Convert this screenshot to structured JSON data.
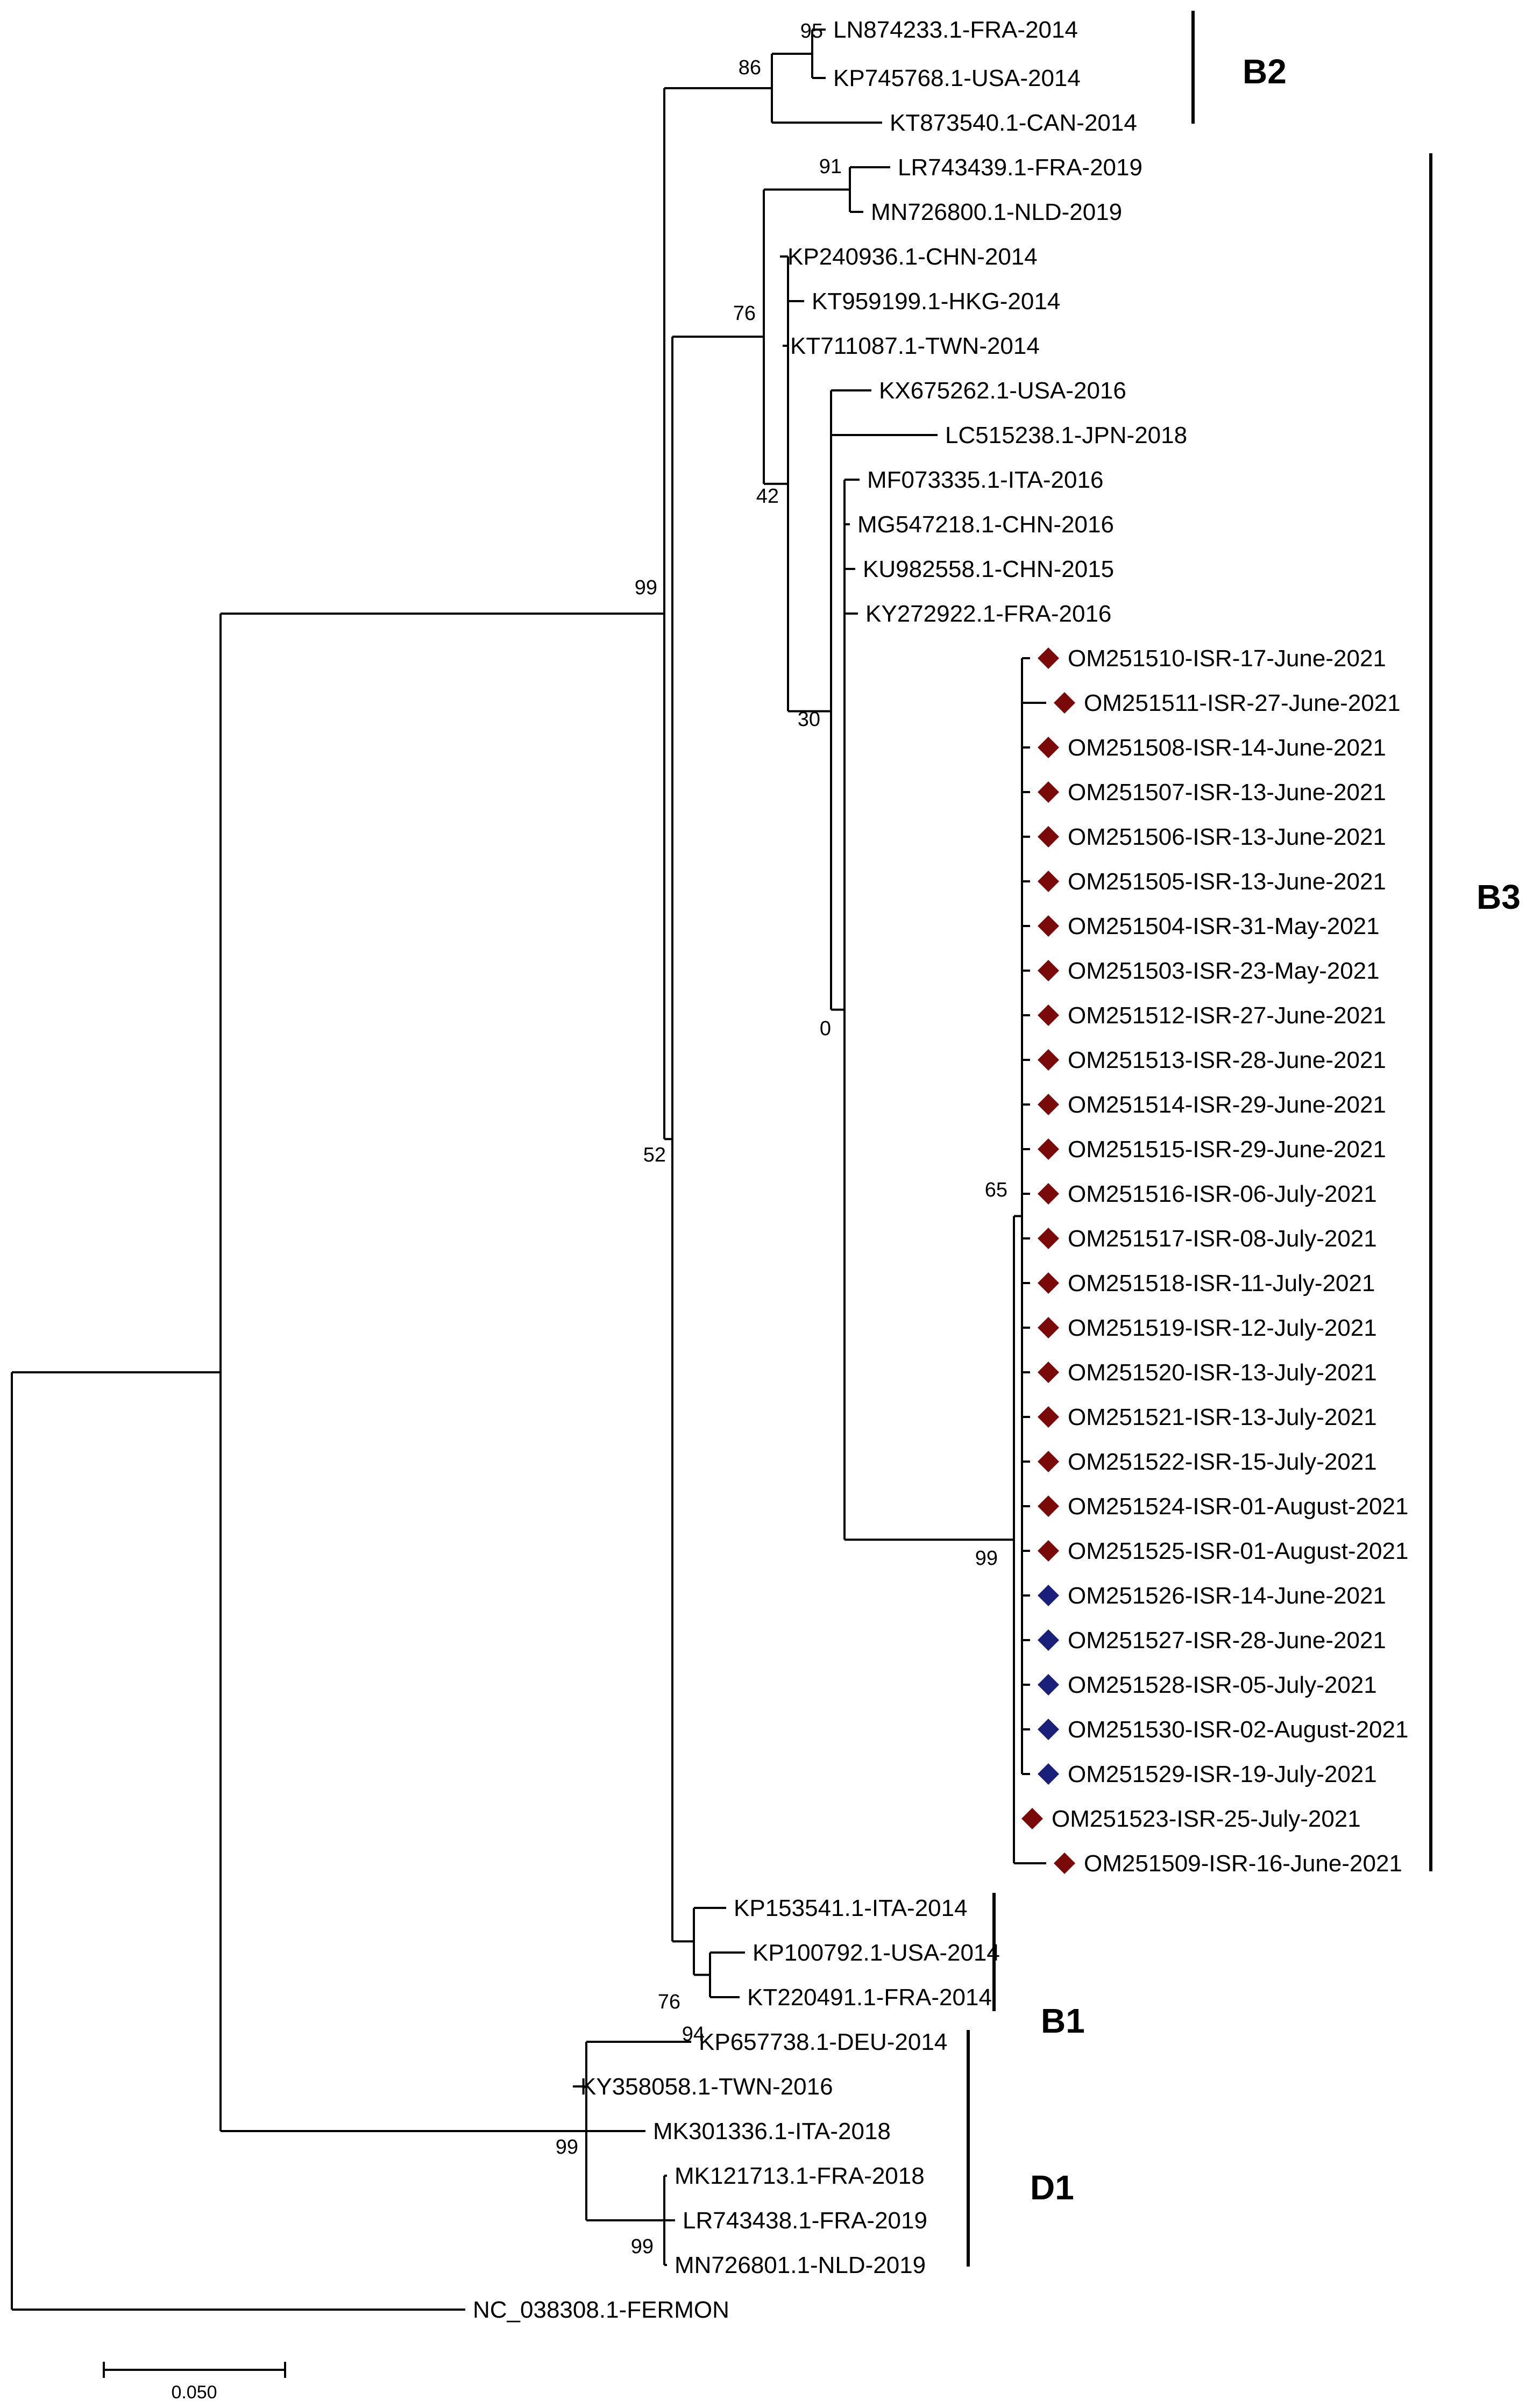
{
  "diagram": {
    "type": "phylogenetic-tree",
    "marker_colors": {
      "red": "#7a0a0a",
      "blue": "#1a1f7a"
    },
    "leaves": [
      {
        "id": "L1",
        "label": "LN874233.1-FRA-2014"
      },
      {
        "id": "L2",
        "label": "KP745768.1-USA-2014"
      },
      {
        "id": "L3",
        "label": "KT873540.1-CAN-2014"
      },
      {
        "id": "L4",
        "label": "LR743439.1-FRA-2019"
      },
      {
        "id": "L5",
        "label": "MN726800.1-NLD-2019"
      },
      {
        "id": "L6",
        "label": "KP240936.1-CHN-2014"
      },
      {
        "id": "L7",
        "label": "KT959199.1-HKG-2014"
      },
      {
        "id": "L8",
        "label": "KT711087.1-TWN-2014"
      },
      {
        "id": "L9",
        "label": "KX675262.1-USA-2016"
      },
      {
        "id": "L10",
        "label": "LC515238.1-JPN-2018"
      },
      {
        "id": "L11",
        "label": "MF073335.1-ITA-2016"
      },
      {
        "id": "L12",
        "label": "MG547218.1-CHN-2016"
      },
      {
        "id": "L13",
        "label": "KU982558.1-CHN-2015"
      },
      {
        "id": "L14",
        "label": "KY272922.1-FRA-2016"
      },
      {
        "id": "L15",
        "label": "OM251510-ISR-17-June-2021",
        "marker": "red"
      },
      {
        "id": "L16",
        "label": "OM251511-ISR-27-June-2021",
        "marker": "red"
      },
      {
        "id": "L17",
        "label": "OM251508-ISR-14-June-2021",
        "marker": "red"
      },
      {
        "id": "L18",
        "label": "OM251507-ISR-13-June-2021",
        "marker": "red"
      },
      {
        "id": "L19",
        "label": "OM251506-ISR-13-June-2021",
        "marker": "red"
      },
      {
        "id": "L20",
        "label": "OM251505-ISR-13-June-2021",
        "marker": "red"
      },
      {
        "id": "L21",
        "label": "OM251504-ISR-31-May-2021",
        "marker": "red"
      },
      {
        "id": "L22",
        "label": "OM251503-ISR-23-May-2021",
        "marker": "red"
      },
      {
        "id": "L23",
        "label": "OM251512-ISR-27-June-2021",
        "marker": "red"
      },
      {
        "id": "L24",
        "label": "OM251513-ISR-28-June-2021",
        "marker": "red"
      },
      {
        "id": "L25",
        "label": "OM251514-ISR-29-June-2021",
        "marker": "red"
      },
      {
        "id": "L26",
        "label": "OM251515-ISR-29-June-2021",
        "marker": "red"
      },
      {
        "id": "L27",
        "label": "OM251516-ISR-06-July-2021",
        "marker": "red"
      },
      {
        "id": "L28",
        "label": "OM251517-ISR-08-July-2021",
        "marker": "red"
      },
      {
        "id": "L29",
        "label": "OM251518-ISR-11-July-2021",
        "marker": "red"
      },
      {
        "id": "L30",
        "label": "OM251519-ISR-12-July-2021",
        "marker": "red"
      },
      {
        "id": "L31",
        "label": "OM251520-ISR-13-July-2021",
        "marker": "red"
      },
      {
        "id": "L32",
        "label": "OM251521-ISR-13-July-2021",
        "marker": "red"
      },
      {
        "id": "L33",
        "label": "OM251522-ISR-15-July-2021",
        "marker": "red"
      },
      {
        "id": "L34",
        "label": "OM251524-ISR-01-August-2021",
        "marker": "red"
      },
      {
        "id": "L35",
        "label": "OM251525-ISR-01-August-2021",
        "marker": "red"
      },
      {
        "id": "L36",
        "label": "OM251526-ISR-14-June-2021",
        "marker": "blue"
      },
      {
        "id": "L37",
        "label": "OM251527-ISR-28-June-2021",
        "marker": "blue"
      },
      {
        "id": "L38",
        "label": "OM251528-ISR-05-July-2021",
        "marker": "blue"
      },
      {
        "id": "L39",
        "label": "OM251530-ISR-02-August-2021",
        "marker": "blue"
      },
      {
        "id": "L40",
        "label": "OM251529-ISR-19-July-2021",
        "marker": "blue"
      },
      {
        "id": "L41",
        "label": "OM251523-ISR-25-July-2021",
        "marker": "red"
      },
      {
        "id": "L42",
        "label": "OM251509-ISR-16-June-2021",
        "marker": "red"
      },
      {
        "id": "L43",
        "label": "KP153541.1-ITA-2014"
      },
      {
        "id": "L44",
        "label": "KP100792.1-USA-2014"
      },
      {
        "id": "L45",
        "label": "KT220491.1-FRA-2014"
      },
      {
        "id": "L46",
        "label": "KP657738.1-DEU-2014"
      },
      {
        "id": "L47",
        "label": "KY358058.1-TWN-2016"
      },
      {
        "id": "L48",
        "label": "MK301336.1-ITA-2018"
      },
      {
        "id": "L49",
        "label": "MK121713.1-FRA-2018"
      },
      {
        "id": "L50",
        "label": "LR743438.1-FRA-2019"
      },
      {
        "id": "L51",
        "label": "MN726801.1-NLD-2019"
      },
      {
        "id": "L52",
        "label": "NC_038308.1-FERMON"
      }
    ],
    "support_values": [
      {
        "node": "b2_inner",
        "value": "95"
      },
      {
        "node": "b2_root",
        "value": "86"
      },
      {
        "node": "b3_nld_fra",
        "value": "91"
      },
      {
        "node": "b3_root",
        "value": "76"
      },
      {
        "node": "b3_mid",
        "value": "42"
      },
      {
        "node": "b3_inner",
        "value": "30"
      },
      {
        "node": "b3_zero",
        "value": "0"
      },
      {
        "node": "b3_isr_inner",
        "value": "65"
      },
      {
        "node": "b3_isr",
        "value": "99"
      },
      {
        "node": "b_all",
        "value": "99"
      },
      {
        "node": "b_mid",
        "value": "52"
      },
      {
        "node": "b1_root",
        "value": "76"
      },
      {
        "node": "b1_inner",
        "value": "94"
      },
      {
        "node": "d1_root",
        "value": "99"
      },
      {
        "node": "d1_inner",
        "value": "99"
      }
    ],
    "clades": [
      {
        "id": "B2",
        "label": "B2"
      },
      {
        "id": "B3",
        "label": "B3"
      },
      {
        "id": "B1",
        "label": "B1"
      },
      {
        "id": "D1",
        "label": "D1"
      }
    ],
    "scale": {
      "value": 0.05,
      "label": "0.050"
    }
  }
}
